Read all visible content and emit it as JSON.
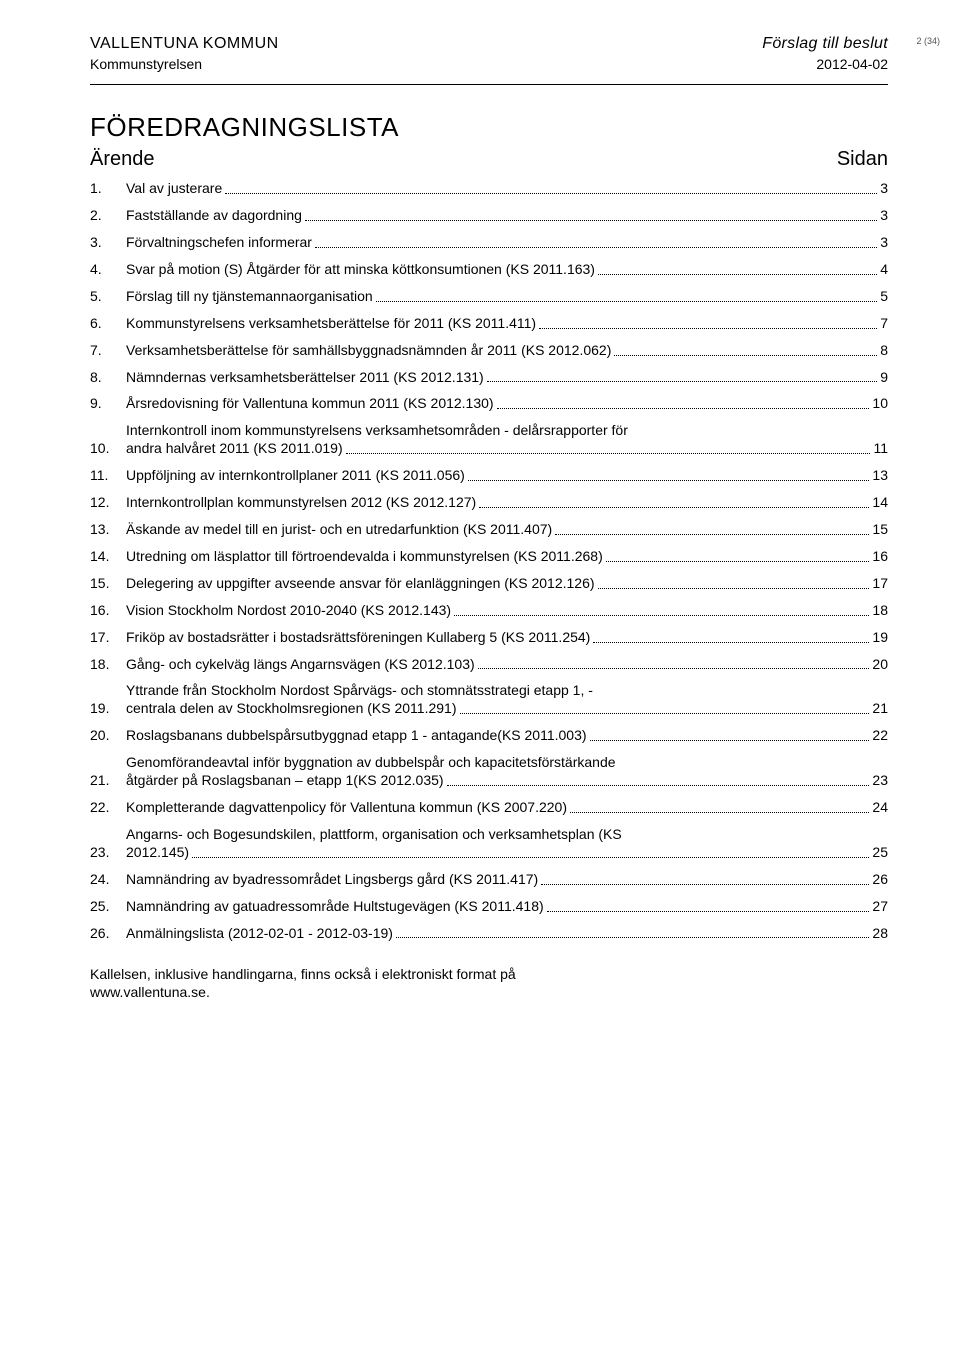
{
  "header": {
    "org": "VALLENTUNA KOMMUN",
    "suborg": "Kommunstyrelsen",
    "proposal": "Förslag till beslut",
    "date": "2012-04-02",
    "pagecount": "2 (34)"
  },
  "title": "FÖREDRAGNINGSLISTA",
  "columns": {
    "left": "Ärende",
    "right": "Sidan"
  },
  "items": [
    {
      "n": "1.",
      "text": "Val av justerare",
      "page": "3"
    },
    {
      "n": "2.",
      "text": "Fastställande av dagordning",
      "page": "3"
    },
    {
      "n": "3.",
      "text": "Förvaltningschefen informerar",
      "page": "3"
    },
    {
      "n": "4.",
      "text": "Svar på motion (S) Åtgärder för att minska köttkonsumtionen (KS 2011.163)",
      "page": "4"
    },
    {
      "n": "5.",
      "text": "Förslag till ny tjänstemannaorganisation",
      "page": "5"
    },
    {
      "n": "6.",
      "text": "Kommunstyrelsens verksamhetsberättelse för 2011 (KS 2011.411)",
      "page": "7"
    },
    {
      "n": "7.",
      "text": "Verksamhetsberättelse för samhällsbyggnadsnämnden år 2011 (KS 2012.062)",
      "page": "8"
    },
    {
      "n": "8.",
      "text": "Nämndernas verksamhetsberättelser 2011 (KS 2012.131)",
      "page": "9"
    },
    {
      "n": "9.",
      "text": "Årsredovisning för Vallentuna kommun 2011 (KS 2012.130)",
      "page": "10"
    },
    {
      "n": "10.",
      "text": "Internkontroll inom kommunstyrelsens verksamhetsområden - delårsrapporter för",
      "cont": "andra halvåret 2011 (KS 2011.019)",
      "page": "11"
    },
    {
      "n": "11.",
      "text": "Uppföljning av internkontrollplaner 2011 (KS 2011.056)",
      "page": "13"
    },
    {
      "n": "12.",
      "text": "Internkontrollplan kommunstyrelsen 2012 (KS 2012.127)",
      "page": "14"
    },
    {
      "n": "13.",
      "text": "Äskande av medel till en jurist- och en utredarfunktion (KS 2011.407)",
      "page": "15"
    },
    {
      "n": "14.",
      "text": "Utredning om läsplattor till förtroendevalda i kommunstyrelsen (KS 2011.268)",
      "page": "16"
    },
    {
      "n": "15.",
      "text": "Delegering av uppgifter avseende ansvar för elanläggningen (KS 2012.126)",
      "page": "17"
    },
    {
      "n": "16.",
      "text": "Vision Stockholm Nordost 2010-2040 (KS 2012.143)",
      "page": "18"
    },
    {
      "n": "17.",
      "text": "Friköp av bostadsrätter i bostadsrättsföreningen Kullaberg 5 (KS 2011.254)",
      "page": "19"
    },
    {
      "n": "18.",
      "text": "Gång- och cykelväg längs Angarnsvägen (KS 2012.103)",
      "page": "20"
    },
    {
      "n": "19.",
      "text": "Yttrande från Stockholm Nordost Spårvägs- och stomnätsstrategi etapp 1, -",
      "cont": "centrala delen av Stockholmsregionen (KS 2011.291)",
      "page": "21"
    },
    {
      "n": "20.",
      "text": "Roslagsbanans dubbelspårsutbyggnad etapp 1 - antagande(KS 2011.003)",
      "page": "22"
    },
    {
      "n": "21.",
      "text": "Genomförandeavtal inför byggnation av dubbelspår och kapacitetsförstärkande",
      "cont": "åtgärder på Roslagsbanan – etapp 1(KS 2012.035)",
      "page": "23"
    },
    {
      "n": "22.",
      "text": "Kompletterande dagvattenpolicy för Vallentuna kommun (KS 2007.220)",
      "page": "24"
    },
    {
      "n": "23.",
      "text": "Angarns- och Bogesundskilen, plattform, organisation och verksamhetsplan (KS",
      "cont": "2012.145)",
      "page": "25"
    },
    {
      "n": "24.",
      "text": "Namnändring av byadressområdet Lingsbergs gård (KS 2011.417)",
      "page": "26"
    },
    {
      "n": "25.",
      "text": "Namnändring av gatuadressområde Hultstugevägen (KS 2011.418)",
      "page": "27"
    },
    {
      "n": "26.",
      "text": "Anmälningslista (2012-02-01 - 2012-03-19)",
      "page": "28"
    }
  ],
  "footer": {
    "line1": "Kallelsen, inklusive handlingarna, finns också i elektroniskt format på",
    "line2": "www.vallentuna.se."
  }
}
